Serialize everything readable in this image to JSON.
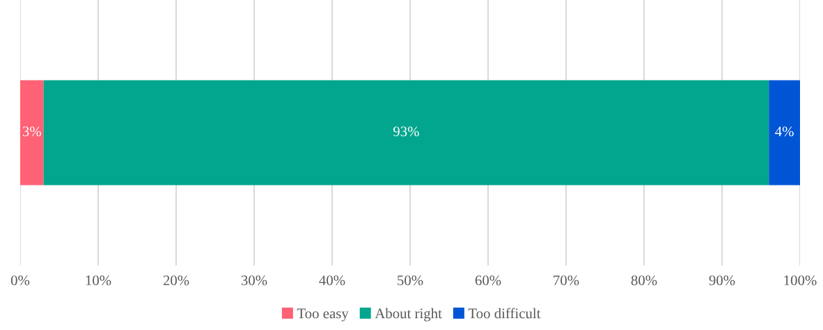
{
  "chart_data": {
    "type": "bar",
    "orientation": "horizontal",
    "stacked": true,
    "categories": [
      null
    ],
    "series": [
      {
        "name": "Too easy",
        "color": "#ff6175",
        "values": [
          3
        ],
        "value_labels": [
          "3%"
        ]
      },
      {
        "name": "About right",
        "color": "#02a58d",
        "values": [
          93
        ],
        "value_labels": [
          "93%"
        ]
      },
      {
        "name": "Too difficult",
        "color": "#0055d5",
        "values": [
          4
        ],
        "value_labels": [
          "4%"
        ]
      }
    ],
    "xlim": [
      0,
      100
    ],
    "xticks": [
      {
        "value": 0,
        "label": "0%"
      },
      {
        "value": 10,
        "label": "10%"
      },
      {
        "value": 20,
        "label": "20%"
      },
      {
        "value": 30,
        "label": "30%"
      },
      {
        "value": 40,
        "label": "40%"
      },
      {
        "value": 50,
        "label": "50%"
      },
      {
        "value": 60,
        "label": "60%"
      },
      {
        "value": 70,
        "label": "70%"
      },
      {
        "value": 80,
        "label": "80%"
      },
      {
        "value": 90,
        "label": "90%"
      },
      {
        "value": 100,
        "label": "100%"
      }
    ],
    "tick_labels": "x",
    "grid": "x",
    "legend": "bottom"
  }
}
